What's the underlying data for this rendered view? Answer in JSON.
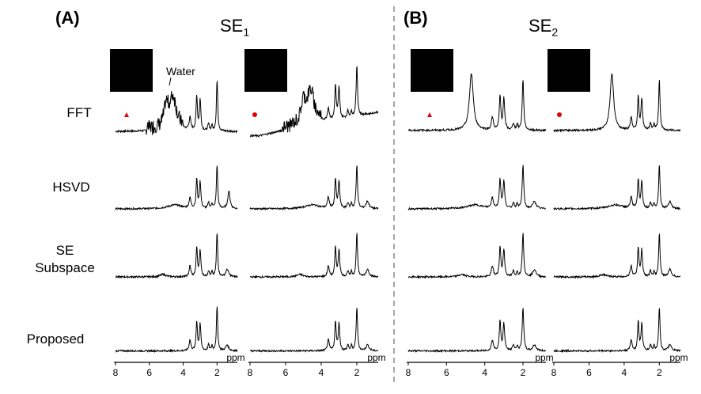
{
  "panels": [
    {
      "label": "(A)",
      "title_main": "SE",
      "title_sub": "1"
    },
    {
      "label": "(B)",
      "title_main": "SE",
      "title_sub": "2"
    }
  ],
  "rows": [
    {
      "label_lines": [
        "FFT"
      ]
    },
    {
      "label_lines": [
        "HSVD"
      ]
    },
    {
      "label_lines": [
        "SE",
        "Subspace"
      ]
    },
    {
      "label_lines": [
        "Proposed"
      ]
    }
  ],
  "annotations": {
    "water": "Water"
  },
  "markers": [
    "triangle",
    "circle",
    "triangle",
    "circle"
  ],
  "axis": {
    "ticks": [
      "8",
      "6",
      "4",
      "2"
    ],
    "unit": "ppm"
  },
  "colors": {
    "marker": "#e00000",
    "line": "#000000",
    "divider": "#888888"
  },
  "chart_data": {
    "type": "line",
    "xlim": [
      8,
      0.8
    ],
    "x_reversed": true,
    "xlabel": "ppm",
    "peaks_ppm": {
      "NAA": 2.0,
      "Cr": 3.0,
      "Cho": 3.2,
      "mI": 3.6,
      "Water": 4.7
    },
    "columns": [
      "SE1-triangle",
      "SE1-circle",
      "SE2-triangle",
      "SE2-circle"
    ]
  }
}
